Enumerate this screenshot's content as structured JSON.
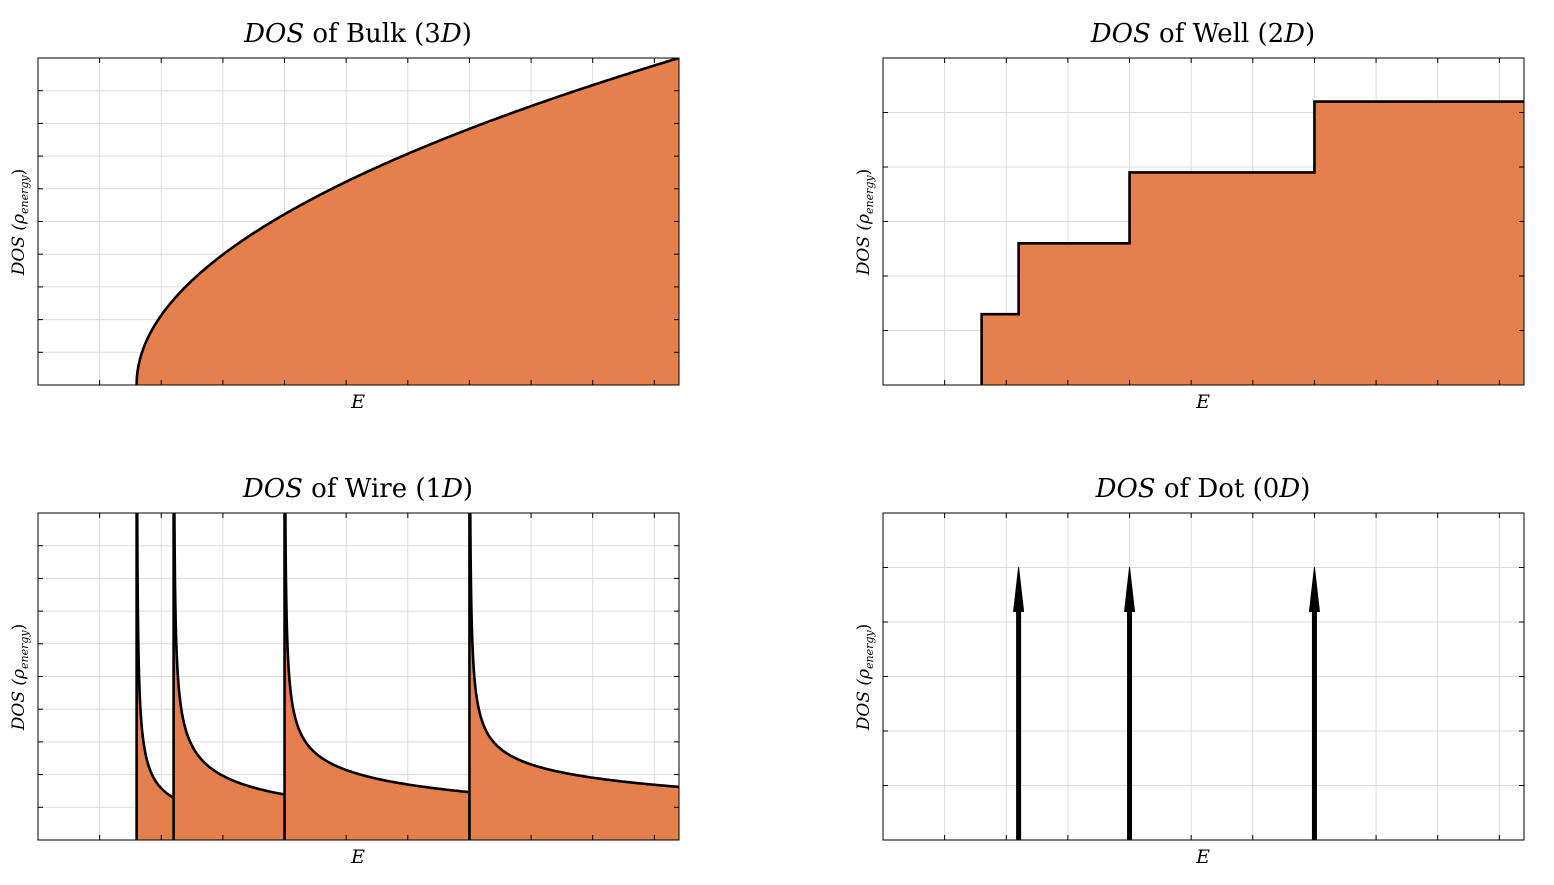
{
  "chart_data": [
    {
      "type": "area",
      "title_italic": "DOS",
      "title_middle": " of Bulk (3",
      "title_dim_italic": "D",
      "title_end": ")",
      "xlabel": "E",
      "ylabel_main": "DOS (",
      "ylabel_rho": "ρ",
      "ylabel_sub": "energy",
      "ylabel_end": ")",
      "xlim": [
        0,
        10.4
      ],
      "ylim": [
        0,
        10
      ],
      "xticks": [
        0,
        1,
        2,
        3,
        4,
        5,
        6,
        7,
        8,
        9,
        10
      ],
      "yticks": [
        0,
        1,
        2,
        3,
        4,
        5,
        6,
        7,
        8,
        9,
        10
      ],
      "grid": true,
      "fill_color": "#e5804d",
      "curve": "sqrt",
      "onset": [
        1.6
      ],
      "x_end": 10.4,
      "y_at_end": 10
    },
    {
      "type": "area",
      "title_italic": "DOS",
      "title_middle": " of Well (2",
      "title_dim_italic": "D",
      "title_end": ")",
      "xlabel": "E",
      "ylabel_main": "DOS (",
      "ylabel_rho": "ρ",
      "ylabel_sub": "energy",
      "ylabel_end": ")",
      "xlim": [
        0,
        10.4
      ],
      "ylim": [
        0,
        6
      ],
      "xticks": [
        0,
        1,
        2,
        3,
        4,
        5,
        6,
        7,
        8,
        9,
        10
      ],
      "yticks": [
        0,
        1,
        2,
        3,
        4,
        5,
        6
      ],
      "grid": true,
      "fill_color": "#e5804d",
      "curve": "step",
      "onset": [
        1.6,
        2.2,
        4.0,
        7.0
      ],
      "levels": [
        1.3,
        2.6,
        3.9,
        5.2
      ],
      "x_end": 10.4
    },
    {
      "type": "area",
      "title_italic": "DOS",
      "title_middle": " of Wire (1",
      "title_dim_italic": "D",
      "title_end": ")",
      "xlabel": "E",
      "ylabel_main": "DOS (",
      "ylabel_rho": "ρ",
      "ylabel_sub": "energy",
      "ylabel_end": ")",
      "xlim": [
        0,
        10.4
      ],
      "ylim": [
        0,
        10
      ],
      "xticks": [
        0,
        1,
        2,
        3,
        4,
        5,
        6,
        7,
        8,
        9,
        10
      ],
      "yticks": [
        0,
        1,
        2,
        3,
        4,
        5,
        6,
        7,
        8,
        9,
        10
      ],
      "grid": true,
      "fill_color": "#e5804d",
      "curve": "inverse-sqrt",
      "onset": [
        1.6,
        2.2,
        4.0,
        7.0
      ],
      "amplitude": 1.0,
      "x_end": 10.4
    },
    {
      "type": "stem",
      "title_italic": "DOS",
      "title_middle": " of Dot (0",
      "title_dim_italic": "D",
      "title_end": ")",
      "xlabel": "E",
      "ylabel_main": "DOS (",
      "ylabel_rho": "ρ",
      "ylabel_sub": "energy",
      "ylabel_end": ")",
      "xlim": [
        0,
        10.4
      ],
      "ylim": [
        0,
        6
      ],
      "xticks": [
        0,
        1,
        2,
        3,
        4,
        5,
        6,
        7,
        8,
        9,
        10
      ],
      "yticks": [
        0,
        1,
        2,
        3,
        4,
        5,
        6
      ],
      "grid": true,
      "curve": "delta",
      "onset": [
        2.2,
        4.0,
        7.0
      ],
      "arrow_height": 5
    }
  ]
}
